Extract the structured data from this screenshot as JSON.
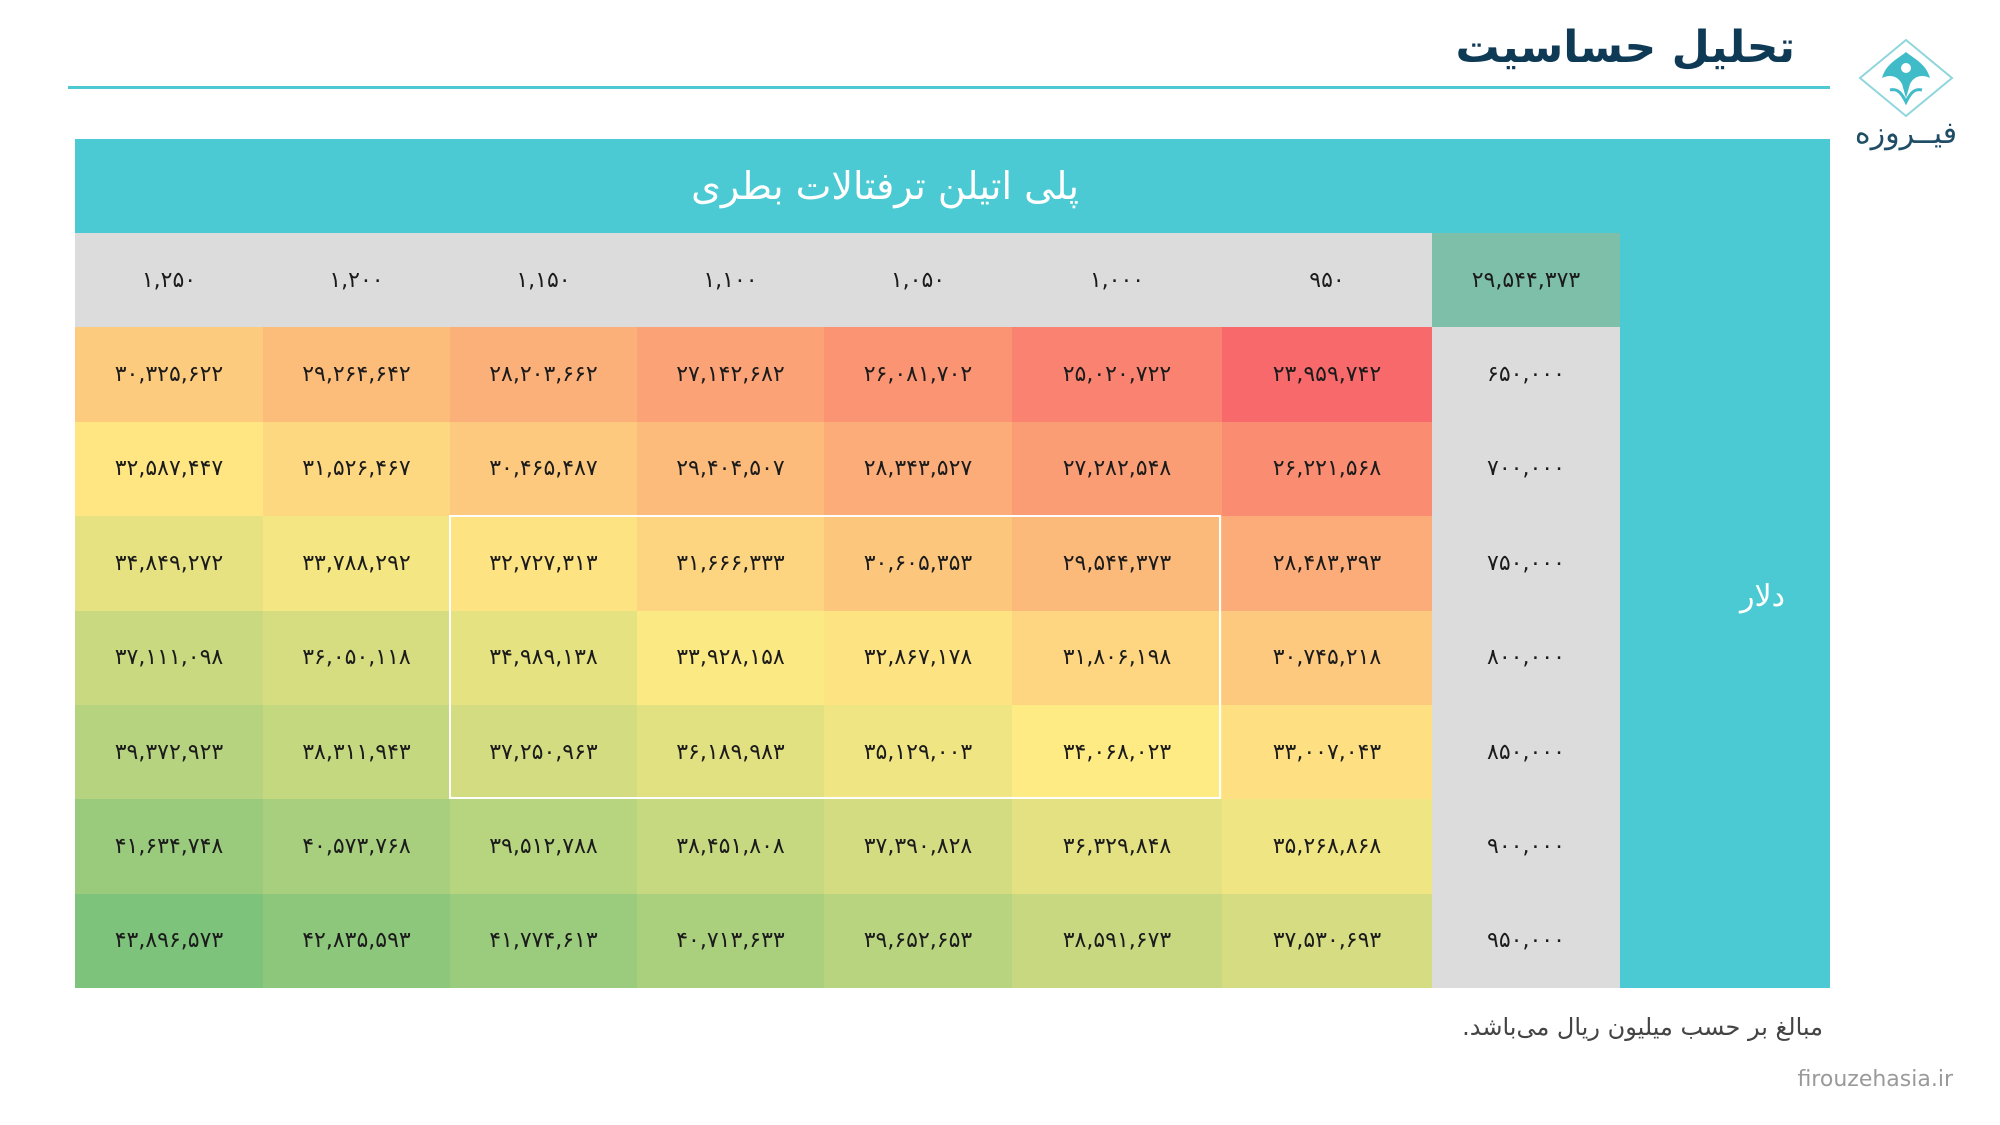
{
  "header": {
    "title": "تحلیل حساسیت"
  },
  "logo": {
    "text": "فیــروزه"
  },
  "table": {
    "title": "پلی اتیلن ترفتالات بطری",
    "row_axis_label": "دلار",
    "corner_value": "۲۹,۵۴۴,۳۷۳",
    "column_headers": [
      "۹۵۰",
      "۱,۰۰۰",
      "۱,۰۵۰",
      "۱,۱۰۰",
      "۱,۱۵۰",
      "۱,۲۰۰",
      "۱,۲۵۰"
    ],
    "rows": [
      {
        "label": "۶۵۰,۰۰۰",
        "values": [
          "۲۳,۹۵۹,۷۴۲",
          "۲۵,۰۲۰,۷۲۲",
          "۲۶,۰۸۱,۷۰۲",
          "۲۷,۱۴۲,۶۸۲",
          "۲۸,۲۰۳,۶۶۲",
          "۲۹,۲۶۴,۶۴۲",
          "۳۰,۳۲۵,۶۲۲"
        ]
      },
      {
        "label": "۷۰۰,۰۰۰",
        "values": [
          "۲۶,۲۲۱,۵۶۸",
          "۲۷,۲۸۲,۵۴۸",
          "۲۸,۳۴۳,۵۲۷",
          "۲۹,۴۰۴,۵۰۷",
          "۳۰,۴۶۵,۴۸۷",
          "۳۱,۵۲۶,۴۶۷",
          "۳۲,۵۸۷,۴۴۷"
        ]
      },
      {
        "label": "۷۵۰,۰۰۰",
        "values": [
          "۲۸,۴۸۳,۳۹۳",
          "۲۹,۵۴۴,۳۷۳",
          "۳۰,۶۰۵,۳۵۳",
          "۳۱,۶۶۶,۳۳۳",
          "۳۲,۷۲۷,۳۱۳",
          "۳۳,۷۸۸,۲۹۲",
          "۳۴,۸۴۹,۲۷۲"
        ]
      },
      {
        "label": "۸۰۰,۰۰۰",
        "values": [
          "۳۰,۷۴۵,۲۱۸",
          "۳۱,۸۰۶,۱۹۸",
          "۳۲,۸۶۷,۱۷۸",
          "۳۳,۹۲۸,۱۵۸",
          "۳۴,۹۸۹,۱۳۸",
          "۳۶,۰۵۰,۱۱۸",
          "۳۷,۱۱۱,۰۹۸"
        ]
      },
      {
        "label": "۸۵۰,۰۰۰",
        "values": [
          "۳۳,۰۰۷,۰۴۳",
          "۳۴,۰۶۸,۰۲۳",
          "۳۵,۱۲۹,۰۰۳",
          "۳۶,۱۸۹,۹۸۳",
          "۳۷,۲۵۰,۹۶۳",
          "۳۸,۳۱۱,۹۴۳",
          "۳۹,۳۷۲,۹۲۳"
        ]
      },
      {
        "label": "۹۰۰,۰۰۰",
        "values": [
          "۳۵,۲۶۸,۸۶۸",
          "۳۶,۳۲۹,۸۴۸",
          "۳۷,۳۹۰,۸۲۸",
          "۳۸,۴۵۱,۸۰۸",
          "۳۹,۵۱۲,۷۸۸",
          "۴۰,۵۷۳,۷۶۸",
          "۴۱,۶۳۴,۷۴۸"
        ]
      },
      {
        "label": "۹۵۰,۰۰۰",
        "values": [
          "۳۷,۵۳۰,۶۹۳",
          "۳۸,۵۹۱,۶۷۳",
          "۳۹,۶۵۲,۶۵۳",
          "۴۰,۷۱۳,۶۳۳",
          "۴۱,۷۷۴,۶۱۳",
          "۴۲,۸۳۵,۵۹۳",
          "۴۳,۸۹۶,۵۷۳"
        ]
      }
    ],
    "cell_colors": [
      [
        "#f8696b",
        "#f98370",
        "#fa9473",
        "#fba276",
        "#fcb079",
        "#fcbd7b",
        "#fdcb7e"
      ],
      [
        "#fa8c72",
        "#fa9d75",
        "#fbac78",
        "#fcbb7b",
        "#fdc97e",
        "#fed880",
        "#ffe683"
      ],
      [
        "#fbac78",
        "#fbb97a",
        "#fcc77d",
        "#fdd580",
        "#fee383",
        "#f4e683",
        "#e6e282"
      ],
      [
        "#fdc97e",
        "#fed580",
        "#fee382",
        "#fbe983",
        "#e5e282",
        "#d6dd81",
        "#c8d980"
      ],
      [
        "#fedf81",
        "#ffeb84",
        "#f0e583",
        "#e2e182",
        "#d3dc81",
        "#c4d880",
        "#b6d47f"
      ],
      [
        "#f0e583",
        "#e3e182",
        "#d4dc81",
        "#c6d880",
        "#b7d47f",
        "#a8cf7e",
        "#9acb7d"
      ],
      [
        "#d5dc81",
        "#c8d880",
        "#b9d47f",
        "#aad07e",
        "#9bcc7d",
        "#8dc77c",
        "#7ec37b"
      ]
    ]
  },
  "footnote": "مبالغ بر حسب میلیون ریال می‌باشد.",
  "website": "firouzehasia.ir"
}
